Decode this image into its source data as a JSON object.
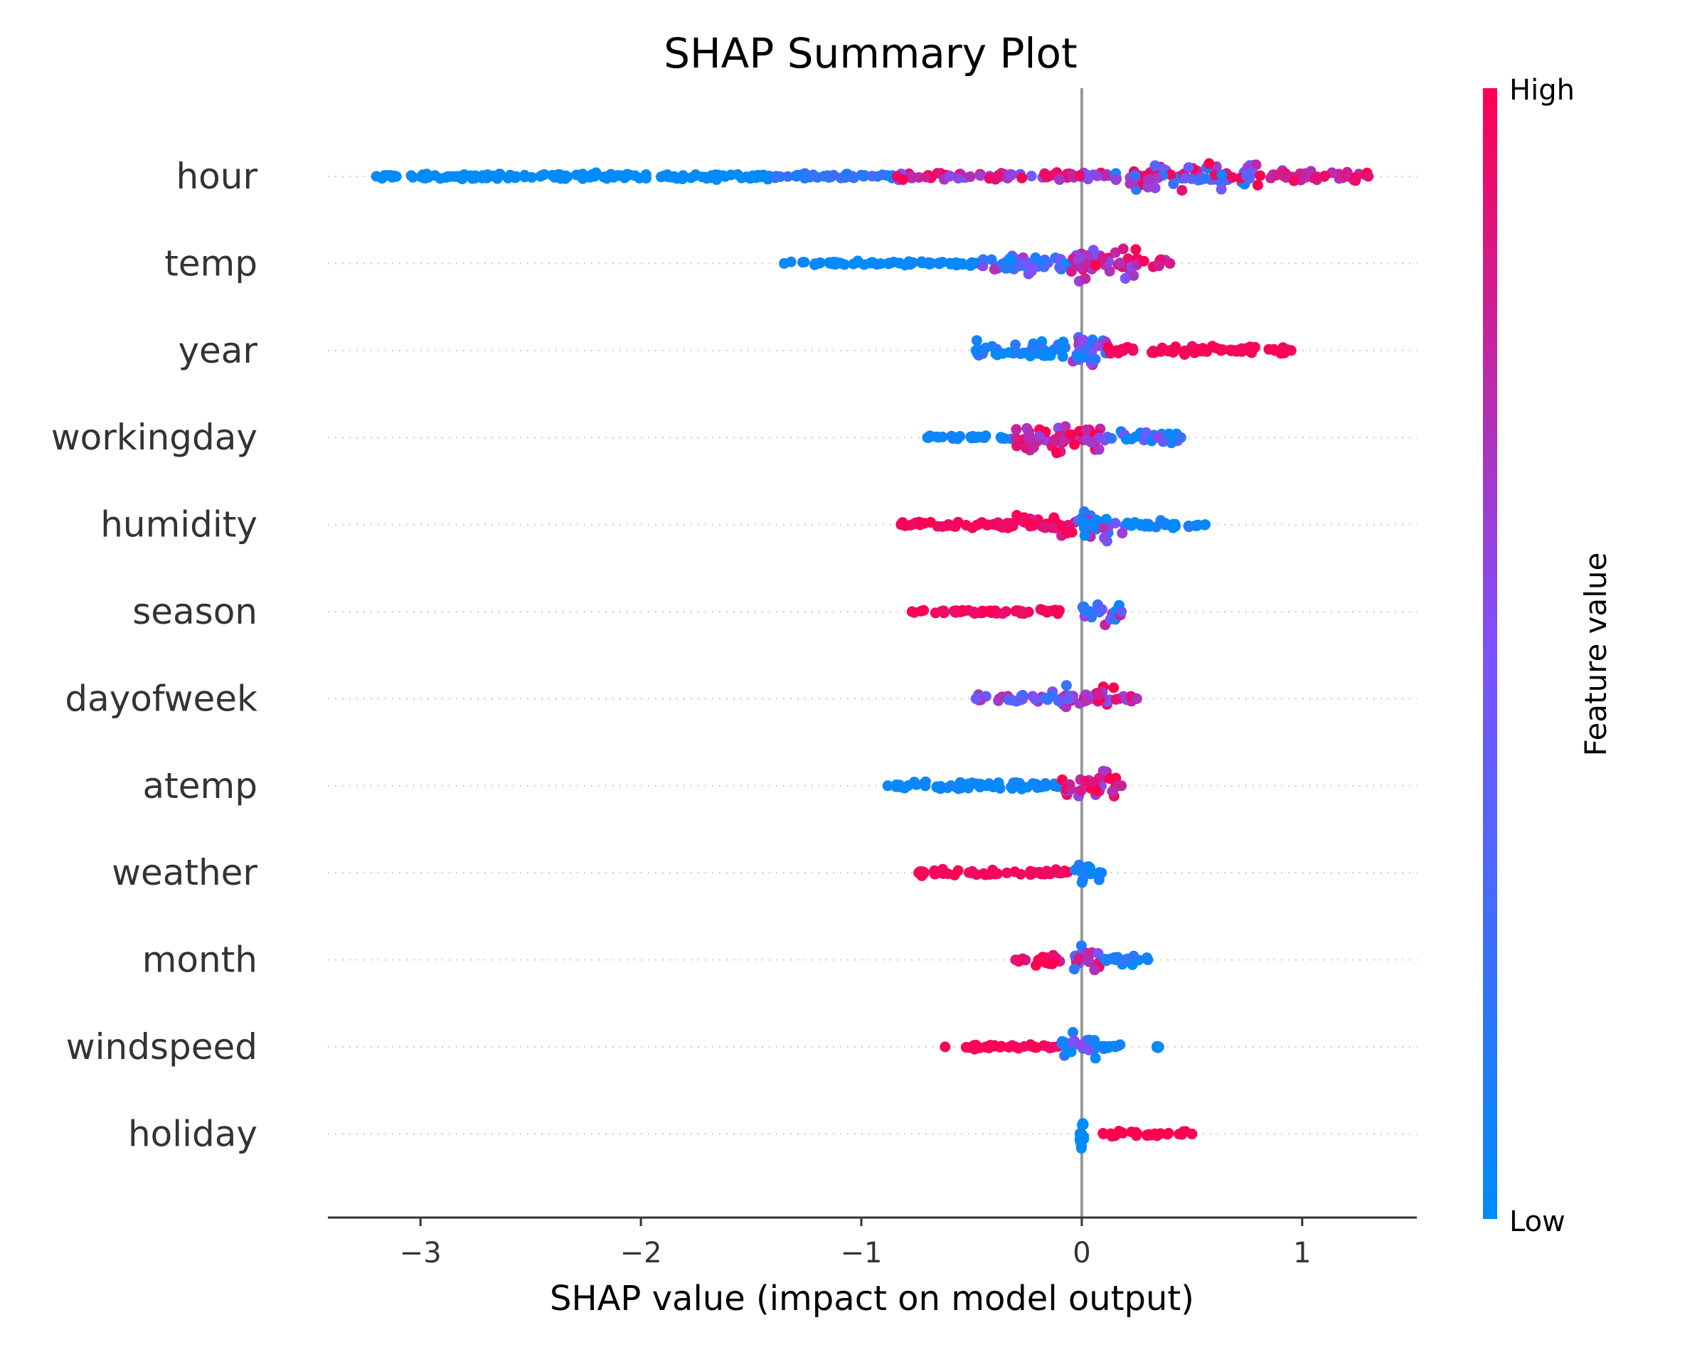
{
  "chart_data": {
    "type": "scatter",
    "subtype": "shap-beeswarm",
    "title": "SHAP Summary Plot",
    "xlabel": "SHAP value (impact on model output)",
    "ylabel": "",
    "xlim": [
      -3.42,
      1.52
    ],
    "xticks": [
      -3,
      -2,
      -1,
      0,
      1
    ],
    "xtick_labels": [
      "−3",
      "−2",
      "−1",
      "0",
      "1"
    ],
    "colorbar": {
      "title": "Feature value",
      "high_label": "High",
      "low_label": "Low",
      "low_color": "#008bfb",
      "mid_color": "#7c52ff",
      "high_color": "#ff0051"
    },
    "zero_line_color": "#999999",
    "features": [
      {
        "name": "hour",
        "min": -3.2,
        "max": 1.3,
        "bands": [
          [
            -3.2,
            -1.4,
            0.12,
            0.0,
            0.0
          ],
          [
            -1.4,
            -0.85,
            0.1,
            0.15,
            0.1
          ],
          [
            -0.85,
            0.15,
            0.14,
            0.75,
            0.35
          ],
          [
            0.15,
            0.8,
            0.45,
            0.55,
            0.5
          ],
          [
            0.8,
            1.3,
            0.2,
            0.9,
            0.2
          ]
        ]
      },
      {
        "name": "temp",
        "min": -1.35,
        "max": 0.4,
        "bands": [
          [
            -1.35,
            -0.45,
            0.08,
            0.02,
            0.05
          ],
          [
            -0.45,
            -0.05,
            0.35,
            0.3,
            0.4
          ],
          [
            -0.05,
            0.25,
            0.6,
            0.75,
            0.3
          ],
          [
            0.25,
            0.4,
            0.15,
            0.85,
            0.2
          ]
        ]
      },
      {
        "name": "year",
        "min": -0.48,
        "max": 0.95,
        "bands": [
          [
            -0.48,
            -0.05,
            0.3,
            0.05,
            0.25
          ],
          [
            -0.05,
            0.12,
            0.55,
            0.45,
            0.45
          ],
          [
            0.12,
            0.95,
            0.15,
            0.97,
            0.05
          ]
        ]
      },
      {
        "name": "workingday",
        "min": -0.7,
        "max": 0.45,
        "bands": [
          [
            -0.7,
            -0.3,
            0.07,
            0.05,
            0.05
          ],
          [
            -0.3,
            0.1,
            0.5,
            0.85,
            0.3
          ],
          [
            0.1,
            0.45,
            0.22,
            0.25,
            0.35
          ]
        ]
      },
      {
        "name": "humidity",
        "min": -0.82,
        "max": 0.56,
        "bands": [
          [
            -0.82,
            -0.3,
            0.12,
            0.97,
            0.05
          ],
          [
            -0.3,
            -0.02,
            0.35,
            0.92,
            0.15
          ],
          [
            -0.02,
            0.2,
            0.5,
            0.3,
            0.45
          ],
          [
            0.2,
            0.56,
            0.15,
            0.05,
            0.1
          ]
        ]
      },
      {
        "name": "season",
        "min": -0.77,
        "max": 0.18,
        "bands": [
          [
            -0.77,
            -0.1,
            0.1,
            0.97,
            0.05
          ],
          [
            0.0,
            0.18,
            0.4,
            0.4,
            0.5
          ]
        ]
      },
      {
        "name": "dayofweek",
        "min": -0.48,
        "max": 0.25,
        "bands": [
          [
            -0.48,
            -0.15,
            0.12,
            0.45,
            0.3
          ],
          [
            -0.15,
            0.15,
            0.45,
            0.6,
            0.45
          ],
          [
            0.15,
            0.25,
            0.12,
            0.7,
            0.3
          ]
        ]
      },
      {
        "name": "atemp",
        "min": -0.88,
        "max": 0.18,
        "bands": [
          [
            -0.88,
            -0.1,
            0.12,
            0.04,
            0.05
          ],
          [
            -0.1,
            0.18,
            0.45,
            0.8,
            0.3
          ]
        ]
      },
      {
        "name": "weather",
        "min": -0.74,
        "max": 0.09,
        "bands": [
          [
            -0.74,
            -0.05,
            0.1,
            0.97,
            0.03
          ],
          [
            -0.03,
            0.09,
            0.45,
            0.05,
            0.1
          ]
        ]
      },
      {
        "name": "month",
        "min": -0.3,
        "max": 0.3,
        "bands": [
          [
            -0.3,
            -0.05,
            0.18,
            0.9,
            0.15
          ],
          [
            -0.05,
            0.08,
            0.45,
            0.55,
            0.45
          ],
          [
            0.08,
            0.3,
            0.15,
            0.1,
            0.2
          ]
        ]
      },
      {
        "name": "windspeed",
        "min": -0.62,
        "max": 0.35,
        "bands": [
          [
            -0.62,
            -0.1,
            0.08,
            0.97,
            0.05
          ],
          [
            -0.1,
            0.08,
            0.4,
            0.25,
            0.35
          ],
          [
            0.08,
            0.18,
            0.08,
            0.05,
            0.05
          ],
          [
            0.34,
            0.35,
            0.04,
            0.0,
            0.0
          ]
        ]
      },
      {
        "name": "holiday",
        "min": 0.0,
        "max": 0.5,
        "bands": [
          [
            -0.01,
            0.01,
            0.55,
            0.0,
            0.0
          ],
          [
            0.08,
            0.5,
            0.1,
            1.0,
            0.0
          ]
        ]
      }
    ]
  }
}
